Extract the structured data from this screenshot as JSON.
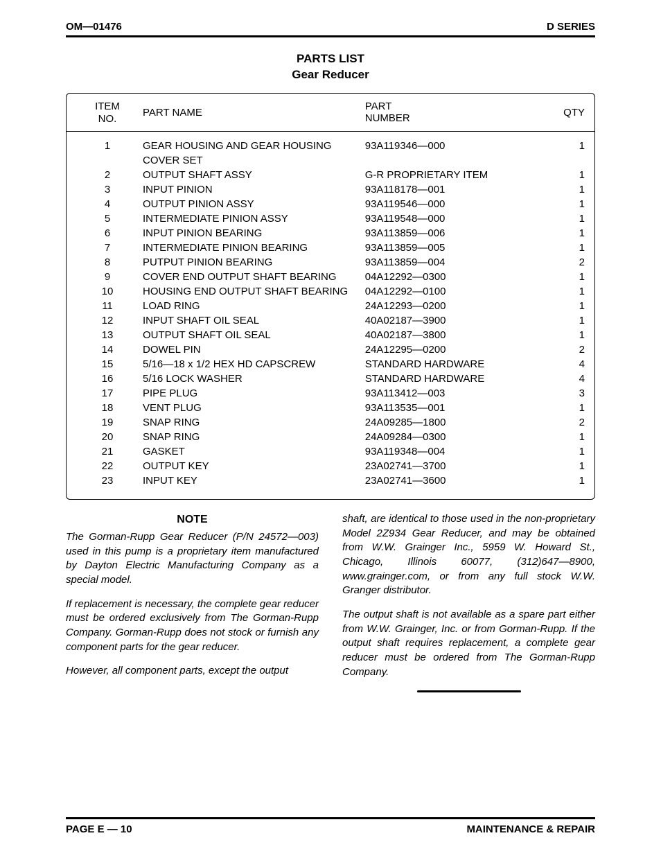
{
  "header": {
    "left": "OM—01476",
    "right": "D SERIES"
  },
  "title": {
    "line1": "PARTS LIST",
    "line2": "Gear Reducer"
  },
  "table": {
    "headers": {
      "item_l1": "ITEM",
      "item_l2": "NO.",
      "name": "PART NAME",
      "part_l1": "PART",
      "part_l2": "NUMBER",
      "qty": "QTY"
    },
    "rows": [
      {
        "item": "1",
        "name": "GEAR HOUSING AND GEAR HOUSING",
        "name2": "COVER SET",
        "part": "93A119346—000",
        "qty": "1"
      },
      {
        "item": "2",
        "name": "OUTPUT SHAFT ASSY",
        "part": "G-R PROPRIETARY ITEM",
        "qty": "1"
      },
      {
        "item": "3",
        "name": "INPUT PINION",
        "part": "93A118178—001",
        "qty": "1"
      },
      {
        "item": "4",
        "name": "OUTPUT PINION ASSY",
        "part": "93A119546—000",
        "qty": "1"
      },
      {
        "item": "5",
        "name": "INTERMEDIATE PINION ASSY",
        "part": "93A119548—000",
        "qty": "1"
      },
      {
        "item": "6",
        "name": "INPUT PINION BEARING",
        "part": "93A113859—006",
        "qty": "1"
      },
      {
        "item": "7",
        "name": "INTERMEDIATE PINION BEARING",
        "part": "93A113859—005",
        "qty": "1"
      },
      {
        "item": "8",
        "name": "PUTPUT PINION BEARING",
        "part": "93A113859—004",
        "qty": "2"
      },
      {
        "item": "9",
        "name": "COVER END OUTPUT SHAFT BEARING",
        "part": "04A12292—0300",
        "qty": "1"
      },
      {
        "item": "10",
        "name": "HOUSING END OUTPUT SHAFT BEARING",
        "part": "04A12292—0100",
        "qty": "1"
      },
      {
        "item": "11",
        "name": "LOAD RING",
        "part": "24A12293—0200",
        "qty": "1"
      },
      {
        "item": "12",
        "name": "INPUT SHAFT OIL SEAL",
        "part": "40A02187—3900",
        "qty": "1"
      },
      {
        "item": "13",
        "name": "OUTPUT SHAFT OIL SEAL",
        "part": "40A02187—3800",
        "qty": "1"
      },
      {
        "item": "14",
        "name": "DOWEL PIN",
        "part": "24A12295—0200",
        "qty": "2"
      },
      {
        "item": "15",
        "name": "5/16—18 x 1/2 HEX HD CAPSCREW",
        "part": "STANDARD HARDWARE",
        "qty": "4"
      },
      {
        "item": "16",
        "name": "5/16 LOCK WASHER",
        "part": "STANDARD HARDWARE",
        "qty": "4"
      },
      {
        "item": "17",
        "name": "PIPE PLUG",
        "part": "93A113412—003",
        "qty": "3"
      },
      {
        "item": "18",
        "name": "VENT PLUG",
        "part": "93A113535—001",
        "qty": "1"
      },
      {
        "item": "19",
        "name": "SNAP RING",
        "part": "24A09285—1800",
        "qty": "2"
      },
      {
        "item": "20",
        "name": "SNAP RING",
        "part": "24A09284—0300",
        "qty": "1"
      },
      {
        "item": "21",
        "name": "GASKET",
        "part": "93A119348—004",
        "qty": "1"
      },
      {
        "item": "22",
        "name": "OUTPUT KEY",
        "part": "23A02741—3700",
        "qty": "1"
      },
      {
        "item": "23",
        "name": "INPUT KEY",
        "part": "23A02741—3600",
        "qty": "1"
      }
    ]
  },
  "notes": {
    "heading": "NOTE",
    "left": [
      "The Gorman-Rupp Gear Reducer (P/N 24572—003) used in this pump is a proprietary item manufactured by Dayton Electric Manufacturing Company as a special model.",
      "If replacement is necessary, the complete gear reducer must be ordered exclusively from The Gorman-Rupp Company. Gorman-Rupp does not stock or furnish any component parts for the gear reducer.",
      "However, all component parts, except the output"
    ],
    "right": [
      "shaft, are identical to those used in the non-proprietary Model 2Z934 Gear Reducer, and may be obtained from W.W. Grainger Inc., 5959 W. Howard St., Chicago, Illinois 60077, (312)647—8900, www.grainger.com, or from any full stock W.W. Granger distributor.",
      "The output shaft is not available as a spare part either from W.W. Grainger, Inc. or from Gorman-Rupp. If the output shaft requires replacement, a complete gear reducer must be ordered from The Gorman-Rupp Company."
    ]
  },
  "footer": {
    "left": "PAGE E — 10",
    "right": "MAINTENANCE & REPAIR"
  }
}
